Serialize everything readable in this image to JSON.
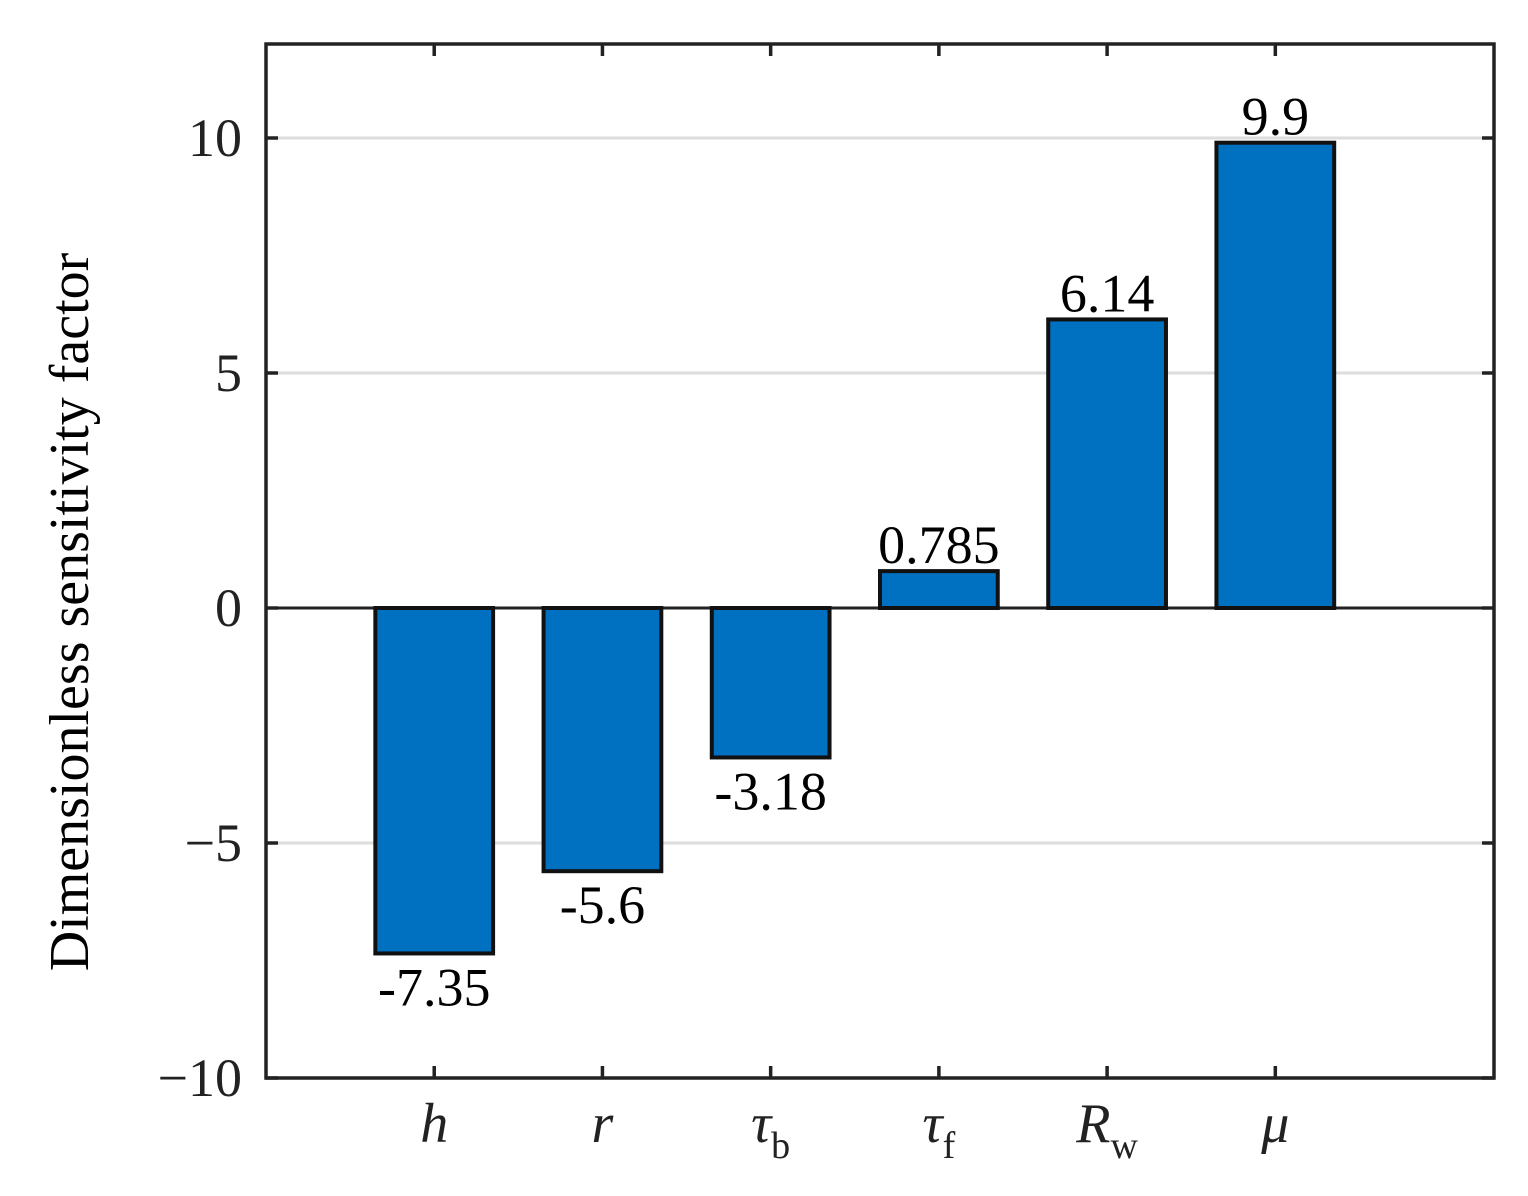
{
  "chart_data": {
    "type": "bar",
    "categories": [
      {
        "base": "h",
        "sub": ""
      },
      {
        "base": "r",
        "sub": ""
      },
      {
        "base": "τ",
        "sub": "b"
      },
      {
        "base": "τ",
        "sub": "f"
      },
      {
        "base": "R",
        "sub": "w"
      },
      {
        "base": "μ",
        "sub": ""
      }
    ],
    "values": [
      -7.35,
      -5.6,
      -3.18,
      0.785,
      6.14,
      9.9
    ],
    "data_labels": [
      "-7.35",
      "-5.6",
      "-3.18",
      "0.785",
      "6.14",
      "9.9"
    ],
    "title": "",
    "xlabel": "",
    "ylabel": "Dimensionless sensitivity factor",
    "ylim": [
      -10,
      12
    ],
    "xlim": [
      0,
      7.3
    ],
    "yticks": [
      -10,
      -5,
      0,
      5,
      10
    ],
    "ytick_labels": [
      "−10",
      "−5",
      "0",
      "5",
      "10"
    ],
    "grid": "horizontal",
    "bar_color": "#0070c0",
    "bar_edge_color": "#111111",
    "grid_color": "#dddddd"
  }
}
